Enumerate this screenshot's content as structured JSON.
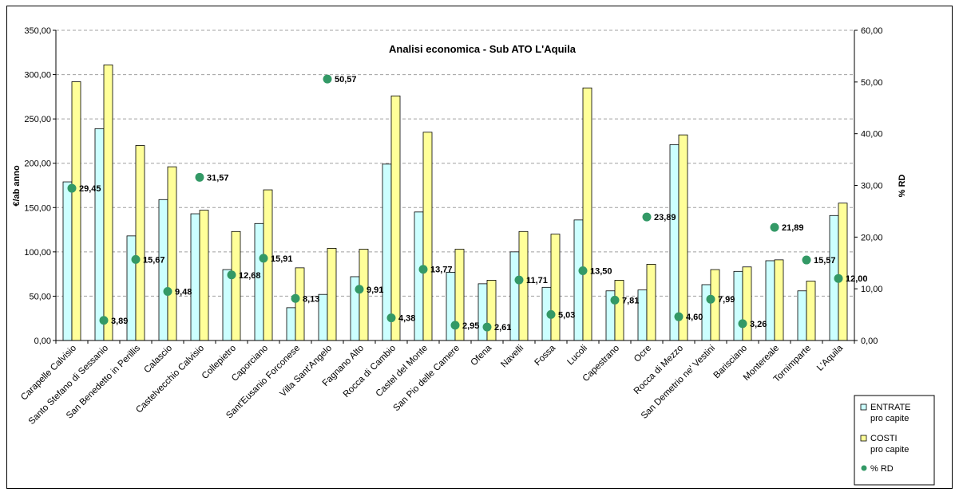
{
  "chart_data": {
    "type": "bar",
    "title": "Analisi economica - Sub ATO L'Aquila",
    "ylabel": "€/ab anno",
    "y2label": "% RD",
    "ylim": [
      0,
      350
    ],
    "y2lim": [
      0,
      60
    ],
    "yticks": [
      "0,00",
      "50,00",
      "100,00",
      "150,00",
      "200,00",
      "250,00",
      "300,00",
      "350,00"
    ],
    "y2ticks": [
      "0,00",
      "10,00",
      "20,00",
      "30,00",
      "40,00",
      "50,00",
      "60,00"
    ],
    "grid": true,
    "legend_position": "bottom-right",
    "categories": [
      "Carapelle Calvisio",
      "Santo Stefano di Sessanio",
      "San Benedetto in Perillis",
      "Calascio",
      "Castelvecchio Calvisio",
      "Collepietro",
      "Caporciano",
      "Sant'Eusanio Forconese",
      "Villa Sant'Angelo",
      "Fagnano Alto",
      "Rocca di Cambio",
      "Castel del Monte",
      "San Pio delle Camere",
      "Ofena",
      "Navelli",
      "Fossa",
      "Lucoli",
      "Capestrano",
      "Ocre",
      "Rocca di Mezzo",
      "San Demetrio ne' Vestini",
      "Barisciano",
      "Montereale",
      "Tornimparte",
      "L'Aquila"
    ],
    "series": [
      {
        "name": "ENTRATE pro capite",
        "legend_lines": [
          "ENTRATE",
          "pro capite"
        ],
        "color": "#CCFFFF",
        "axis": "left",
        "values": [
          179,
          239,
          118,
          159,
          143,
          80,
          132,
          37,
          52,
          72,
          199,
          145,
          77,
          64,
          100,
          60,
          136,
          56,
          57,
          221,
          63,
          78,
          90,
          56,
          141
        ]
      },
      {
        "name": "COSTI pro capite",
        "legend_lines": [
          "COSTI",
          "pro capite"
        ],
        "color": "#FFFF99",
        "axis": "left",
        "values": [
          292,
          311,
          220,
          196,
          147,
          123,
          170,
          82,
          104,
          103,
          276,
          235,
          103,
          68,
          123,
          120,
          285,
          68,
          86,
          232,
          80,
          83,
          91,
          67,
          155
        ]
      },
      {
        "name": "% RD",
        "legend_lines": [
          "% RD"
        ],
        "color": "#339966",
        "axis": "right",
        "values": [
          29.45,
          3.89,
          15.67,
          9.48,
          31.57,
          12.68,
          15.91,
          8.13,
          50.57,
          9.91,
          4.38,
          13.77,
          2.95,
          2.61,
          11.71,
          5.03,
          13.5,
          7.81,
          23.89,
          4.6,
          7.99,
          3.26,
          21.89,
          15.57,
          12.0
        ],
        "labels": [
          "29,45",
          "3,89",
          "15,67",
          "9,48",
          "31,57",
          "12,68",
          "15,91",
          "8,13",
          "50,57",
          "9,91",
          "4,38",
          "13,77",
          "2,95",
          "2,61",
          "11,71",
          "5,03",
          "13,50",
          "7,81",
          "23,89",
          "4,60",
          "7,99",
          "3,26",
          "21,89",
          "15,57",
          "12,00"
        ]
      }
    ]
  }
}
